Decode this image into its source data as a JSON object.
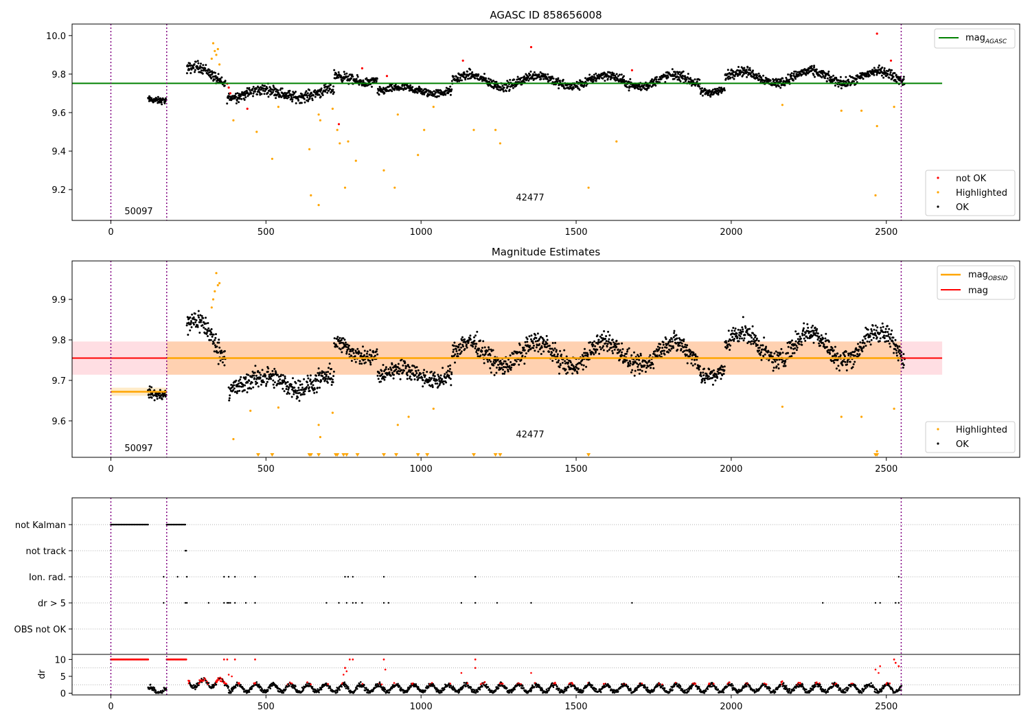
{
  "figure": {
    "panel1": {
      "title": "AGASC ID 858656008",
      "obsid_labels": [
        "50097",
        "42477"
      ],
      "legend_line": {
        "base": "mag",
        "sub": "AGASC",
        "color": "#008000"
      },
      "legend_points": [
        {
          "label": "not OK",
          "color": "#ff0000"
        },
        {
          "label": "Highlighted",
          "color": "#ffa500"
        },
        {
          "label": "OK",
          "color": "#000000"
        }
      ]
    },
    "panel2": {
      "title": "Magnitude Estimates",
      "obsid_labels": [
        "50097",
        "42477"
      ],
      "legend_lines": [
        {
          "base": "mag",
          "sub": "OBSID",
          "color": "#ffa500"
        },
        {
          "base": "mag",
          "sub": "",
          "color": "#ff0000"
        }
      ],
      "legend_points": [
        {
          "label": "Highlighted",
          "color": "#ffa500"
        },
        {
          "label": "OK",
          "color": "#000000"
        }
      ]
    },
    "panel3": {
      "ylabel": "dr",
      "flag_rows": [
        "not Kalman",
        "not track",
        "Ion. rad.",
        "dr > 5",
        "OBS not OK"
      ]
    }
  },
  "chart_data": [
    {
      "type": "scatter",
      "title": "AGASC ID 858656008",
      "xlabel": "",
      "ylabel": "",
      "xlim": [
        -125,
        2930
      ],
      "ylim": [
        9.04,
        10.06
      ],
      "xticks": [
        0,
        500,
        1000,
        1500,
        2000,
        2500
      ],
      "yticks": [
        9.2,
        9.4,
        9.6,
        9.8,
        10.0
      ],
      "ytick_labels": [
        "9.2",
        "9.4",
        "9.6",
        "9.8",
        "10.0"
      ],
      "obsid_boundaries": [
        0,
        180,
        2548
      ],
      "reference_line": {
        "name": "mag_AGASC",
        "y": 9.752,
        "x_range": [
          -125,
          2680
        ]
      },
      "obsids": [
        {
          "label": "50097",
          "x": 60,
          "y": 9.085
        },
        {
          "label": "42477",
          "x": 1360,
          "y": 9.155
        }
      ],
      "legend": [
        "upper-right",
        "lower-right"
      ],
      "ok_segments": [
        {
          "x": [
            120,
            180
          ],
          "y": 9.672,
          "amp": 0.01,
          "noise": 0.012
        },
        {
          "x": [
            245,
            370
          ],
          "y": 9.79,
          "amp": 0.05,
          "noise": 0.02
        },
        {
          "x": [
            375,
            720
          ],
          "y": 9.7,
          "amp": 0.02,
          "noise": 0.02
        },
        {
          "x": [
            720,
            860
          ],
          "y": 9.775,
          "amp": 0.02,
          "noise": 0.018
        },
        {
          "x": [
            860,
            1100
          ],
          "y": 9.715,
          "amp": 0.015,
          "noise": 0.015
        },
        {
          "x": [
            1100,
            1900
          ],
          "y": 9.765,
          "amp": 0.03,
          "noise": 0.018
        },
        {
          "x": [
            1900,
            1980
          ],
          "y": 9.72,
          "amp": 0.015,
          "noise": 0.015
        },
        {
          "x": [
            1980,
            2560
          ],
          "y": 9.785,
          "amp": 0.03,
          "noise": 0.018
        }
      ],
      "highlighted": [
        [
          330,
          9.96
        ],
        [
          335,
          9.92
        ],
        [
          340,
          9.9
        ],
        [
          345,
          9.93
        ],
        [
          325,
          9.88
        ],
        [
          350,
          9.85
        ],
        [
          395,
          9.56
        ],
        [
          470,
          9.5
        ],
        [
          520,
          9.36
        ],
        [
          540,
          9.63
        ],
        [
          640,
          9.41
        ],
        [
          645,
          9.17
        ],
        [
          670,
          9.12
        ],
        [
          670,
          9.59
        ],
        [
          675,
          9.56
        ],
        [
          715,
          9.62
        ],
        [
          730,
          9.51
        ],
        [
          738,
          9.44
        ],
        [
          755,
          9.21
        ],
        [
          765,
          9.45
        ],
        [
          790,
          9.35
        ],
        [
          880,
          9.3
        ],
        [
          915,
          9.21
        ],
        [
          925,
          9.59
        ],
        [
          990,
          9.38
        ],
        [
          1010,
          9.51
        ],
        [
          1040,
          9.63
        ],
        [
          1170,
          9.51
        ],
        [
          1240,
          9.51
        ],
        [
          1255,
          9.44
        ],
        [
          1540,
          9.21
        ],
        [
          1630,
          9.45
        ],
        [
          2165,
          9.64
        ],
        [
          2355,
          9.61
        ],
        [
          2420,
          9.61
        ],
        [
          2465,
          9.17
        ],
        [
          2470,
          9.53
        ],
        [
          2525,
          9.63
        ]
      ],
      "not_ok": [
        [
          375,
          9.75
        ],
        [
          380,
          9.73
        ],
        [
          385,
          9.7
        ],
        [
          440,
          9.62
        ],
        [
          810,
          9.83
        ],
        [
          890,
          9.79
        ],
        [
          1135,
          9.87
        ],
        [
          1355,
          9.94
        ],
        [
          1680,
          9.82
        ],
        [
          2470,
          10.01
        ],
        [
          2515,
          9.87
        ],
        [
          735,
          9.54
        ]
      ]
    },
    {
      "type": "scatter",
      "title": "Magnitude Estimates",
      "xlabel": "",
      "ylabel": "",
      "xlim": [
        -125,
        2930
      ],
      "ylim": [
        9.51,
        9.995
      ],
      "xticks": [
        0,
        500,
        1000,
        1500,
        2000,
        2500
      ],
      "yticks": [
        9.6,
        9.7,
        9.8,
        9.9
      ],
      "ytick_labels": [
        "9.6",
        "9.7",
        "9.8",
        "9.9"
      ],
      "obsid_boundaries": [
        0,
        180,
        2548
      ],
      "mag_line": {
        "y": 9.755,
        "band": [
          9.714,
          9.796
        ],
        "x_range": [
          -125,
          2680
        ]
      },
      "mag_obsid_segments": [
        {
          "x": [
            0,
            180
          ],
          "y": 9.672,
          "band": [
            9.662,
            9.682
          ]
        },
        {
          "x": [
            180,
            2548
          ],
          "y": 9.755,
          "band": [
            9.714,
            9.796
          ]
        }
      ],
      "obsids": [
        {
          "label": "50097",
          "x": 60,
          "y": 9.535
        },
        {
          "label": "42477",
          "x": 1360,
          "y": 9.565
        }
      ],
      "legend": [
        "upper-right",
        "lower-right"
      ],
      "ok_segments": [
        {
          "x": [
            120,
            180
          ],
          "y": 9.675,
          "amp": 0.012,
          "noise": 0.01
        },
        {
          "x": [
            245,
            370
          ],
          "y": 9.8,
          "amp": 0.05,
          "noise": 0.02
        },
        {
          "x": [
            380,
            720
          ],
          "y": 9.695,
          "amp": 0.015,
          "noise": 0.018
        },
        {
          "x": [
            720,
            860
          ],
          "y": 9.775,
          "amp": 0.02,
          "noise": 0.015
        },
        {
          "x": [
            860,
            1100
          ],
          "y": 9.715,
          "amp": 0.015,
          "noise": 0.015
        },
        {
          "x": [
            1100,
            1900
          ],
          "y": 9.765,
          "amp": 0.03,
          "noise": 0.018
        },
        {
          "x": [
            1900,
            1980
          ],
          "y": 9.725,
          "amp": 0.015,
          "noise": 0.015
        },
        {
          "x": [
            1980,
            2560
          ],
          "y": 9.785,
          "amp": 0.035,
          "noise": 0.018
        }
      ],
      "highlighted": [
        [
          325,
          9.88
        ],
        [
          330,
          9.9
        ],
        [
          335,
          9.92
        ],
        [
          340,
          9.965
        ],
        [
          345,
          9.935
        ],
        [
          350,
          9.94
        ],
        [
          395,
          9.555
        ],
        [
          450,
          9.625
        ],
        [
          540,
          9.633
        ],
        [
          715,
          9.62
        ],
        [
          670,
          9.59
        ],
        [
          675,
          9.56
        ],
        [
          925,
          9.59
        ],
        [
          960,
          9.61
        ],
        [
          1040,
          9.63
        ],
        [
          2165,
          9.635
        ],
        [
          2355,
          9.61
        ],
        [
          2420,
          9.61
        ],
        [
          2470,
          9.525
        ],
        [
          2525,
          9.63
        ]
      ],
      "below_range_x": [
        475,
        520,
        640,
        645,
        670,
        725,
        730,
        750,
        760,
        795,
        880,
        920,
        990,
        1020,
        1170,
        1240,
        1255,
        1540,
        2465,
        2470
      ]
    },
    {
      "type": "scatter",
      "title": "",
      "xlabel": "",
      "ylabel": "dr",
      "xlim": [
        -125,
        2930
      ],
      "ylim": [
        -0.5,
        11.5
      ],
      "xticks": [
        0,
        500,
        1000,
        1500,
        2000,
        2500
      ],
      "yticks": [
        0,
        5,
        10
      ],
      "ytick_labels": [
        "0",
        "5",
        "10"
      ],
      "obsid_boundaries": [
        0,
        180,
        2548
      ],
      "flag_rows": [
        "not Kalman",
        "not track",
        "Ion. rad.",
        "dr > 5",
        "OBS not OK"
      ],
      "flags": {
        "not Kalman": [
          [
            0,
            120
          ],
          [
            180,
            240
          ]
        ],
        "not track": [
          [
            240,
            245
          ]
        ],
        "Ion. rad.": [
          170,
          215,
          245,
          365,
          380,
          400,
          465,
          755,
          765,
          780,
          880,
          1175,
          2540
        ],
        "dr > 5": [
          170,
          240,
          245,
          315,
          365,
          375,
          380,
          385,
          400,
          435,
          465,
          695,
          735,
          760,
          780,
          790,
          810,
          880,
          895,
          1130,
          1175,
          1245,
          1355,
          1680,
          2295,
          2465,
          2480,
          2530,
          2540
        ],
        "OBS not OK": []
      },
      "dr_high_x": [
        [
          0,
          120
        ],
        [
          180,
          245
        ]
      ],
      "dr_high_points": [
        [
          365,
          10
        ],
        [
          375,
          10
        ],
        [
          400,
          10
        ],
        [
          465,
          10
        ],
        [
          755,
          7.5
        ],
        [
          770,
          10
        ],
        [
          780,
          10
        ],
        [
          880,
          10
        ],
        [
          1175,
          10
        ],
        [
          2525,
          10
        ],
        [
          2530,
          9
        ],
        [
          2540,
          8
        ]
      ],
      "dr_mid_points": [
        [
          750,
          5.5
        ],
        [
          760,
          6.5
        ],
        [
          885,
          7
        ],
        [
          1130,
          6
        ],
        [
          1175,
          7.5
        ],
        [
          1355,
          6
        ],
        [
          2465,
          7
        ],
        [
          2475,
          6
        ],
        [
          2480,
          8
        ],
        [
          380,
          5.5
        ],
        [
          390,
          5
        ]
      ],
      "dr_baseline": [
        [
          120,
          180,
          0.8
        ],
        [
          250,
          380,
          3.0
        ],
        [
          380,
          2550,
          1.5
        ]
      ]
    }
  ]
}
